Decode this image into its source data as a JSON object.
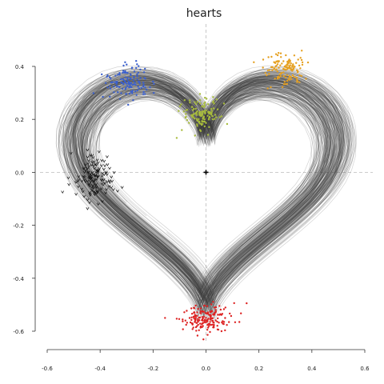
{
  "chart_data": {
    "type": "scatter",
    "title": "hearts",
    "xlabel": "",
    "ylabel": "",
    "xlim": [
      -0.6,
      0.6
    ],
    "ylim": [
      -0.6,
      0.4
    ],
    "x_ticks": [
      -0.6,
      -0.4,
      -0.2,
      0.0,
      0.2,
      0.4,
      0.6
    ],
    "x_tick_labels": [
      "-0.6",
      "-0.4",
      "-0.2",
      "0.0",
      "0.2",
      "0.4",
      "0.6"
    ],
    "y_ticks": [
      -0.6,
      -0.4,
      -0.2,
      0.0,
      0.2,
      0.4
    ],
    "y_tick_labels": [
      "-0.6",
      "-0.4",
      "-0.2",
      "0.0",
      "0.2",
      "0.4"
    ],
    "grid": false,
    "reference_lines": {
      "x": 0.0,
      "y": 0.0,
      "style": "dashed"
    },
    "origin_marker": [
      0.0,
      0.0
    ],
    "trail_color": "#555555",
    "series": [
      {
        "color": "#3a5fcd",
        "marker": "dot",
        "cluster": {
          "center": [
            -0.3,
            0.34
          ],
          "spread": [
            0.07,
            0.055
          ],
          "count": 130
        }
      },
      {
        "color": "#e5a020",
        "marker": "dot",
        "cluster": {
          "center": [
            0.3,
            0.39
          ],
          "spread": [
            0.065,
            0.05
          ],
          "count": 130
        }
      },
      {
        "color": "#a8bc3c",
        "marker": "dot",
        "cluster": {
          "center": [
            -0.02,
            0.22
          ],
          "spread": [
            0.06,
            0.05
          ],
          "count": 130
        }
      },
      {
        "color": "#111111",
        "marker": "arrowhead",
        "cluster": {
          "center": [
            -0.42,
            -0.02
          ],
          "spread": [
            0.06,
            0.07
          ],
          "count": 130
        }
      },
      {
        "color": "#dd2222",
        "marker": "dot",
        "cluster": {
          "center": [
            0.0,
            -0.55
          ],
          "spread": [
            0.08,
            0.045
          ],
          "count": 180
        }
      }
    ],
    "trails": {
      "count": 230,
      "shape": "heart"
    }
  }
}
